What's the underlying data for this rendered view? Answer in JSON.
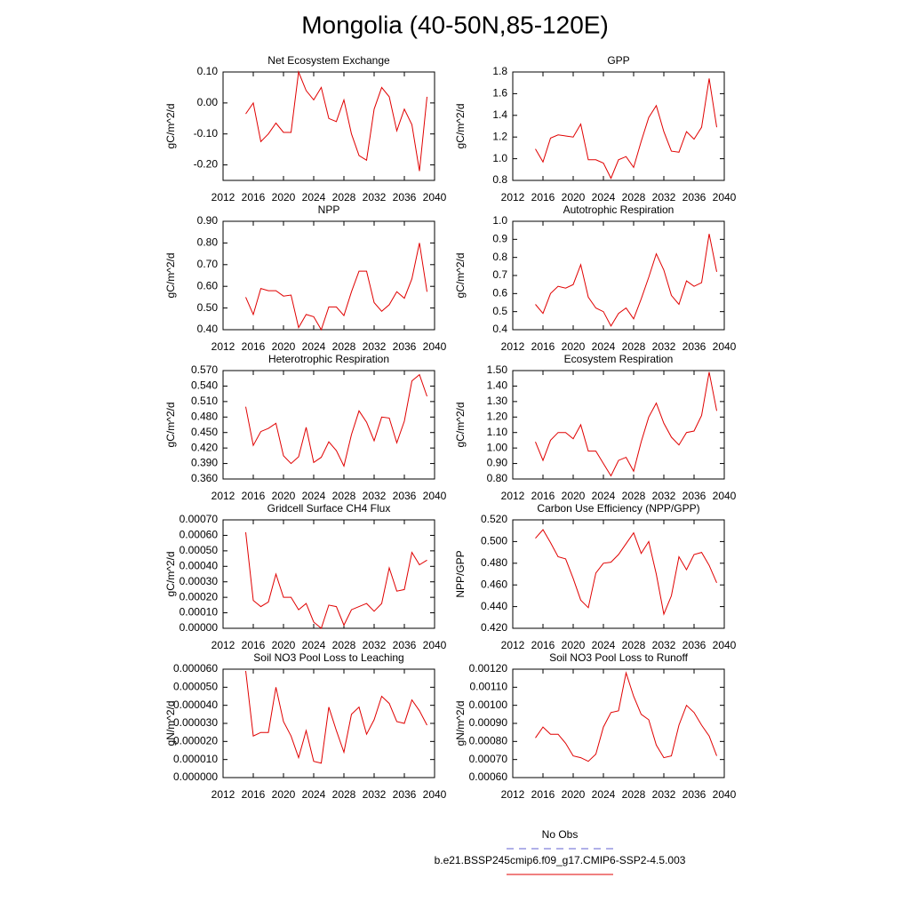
{
  "title": "Mongolia (40-50N,85-120E)",
  "legend": [
    {
      "name": "No Obs",
      "color": "#6060d0",
      "dash": true
    },
    {
      "name": "b.e21.BSSP245cmip6.f09_g17.CMIP6-SSP2-4.5.003",
      "color": "#e00000",
      "dash": false
    }
  ],
  "chart_data": [
    {
      "type": "line",
      "title": "Net Ecosystem Exchange",
      "y_label": "gC/m^2/d",
      "color": "#e00000",
      "x": [
        2015,
        2016,
        2017,
        2018,
        2019,
        2020,
        2021,
        2022,
        2023,
        2024,
        2025,
        2026,
        2027,
        2028,
        2029,
        2030,
        2031,
        2032,
        2033,
        2034,
        2035,
        2036,
        2037,
        2038,
        2039
      ],
      "values": [
        -0.035,
        0.0,
        -0.125,
        -0.1,
        -0.065,
        -0.095,
        -0.095,
        0.1,
        0.04,
        0.01,
        0.05,
        -0.05,
        -0.06,
        0.01,
        -0.1,
        -0.17,
        -0.185,
        -0.02,
        0.05,
        0.02,
        -0.09,
        -0.02,
        -0.07,
        -0.22,
        0.02
      ],
      "xlim": [
        2012,
        2040
      ],
      "xticks": [
        2012,
        2016,
        2020,
        2024,
        2028,
        2032,
        2036,
        2040
      ],
      "ylim": [
        -0.25,
        0.1
      ],
      "yticks": [
        {
          "value": 0.1,
          "label": "0.10"
        },
        {
          "value": 0,
          "label": "0.00"
        },
        {
          "value": -0.1,
          "label": "-0.10"
        },
        {
          "value": -0.2,
          "label": "-0.20"
        }
      ]
    },
    {
      "type": "line",
      "title": "GPP",
      "y_label": "gC/m^2/d",
      "color": "#e00000",
      "x": [
        2015,
        2016,
        2017,
        2018,
        2019,
        2020,
        2021,
        2022,
        2023,
        2024,
        2025,
        2026,
        2027,
        2028,
        2029,
        2030,
        2031,
        2032,
        2033,
        2034,
        2035,
        2036,
        2037,
        2038,
        2039
      ],
      "values": [
        1.09,
        0.97,
        1.19,
        1.22,
        1.21,
        1.2,
        1.32,
        0.99,
        0.99,
        0.96,
        0.82,
        0.99,
        1.02,
        0.92,
        1.16,
        1.38,
        1.49,
        1.25,
        1.07,
        1.06,
        1.25,
        1.18,
        1.29,
        1.74,
        1.29
      ],
      "xlim": [
        2012,
        2040
      ],
      "xticks": [
        2012,
        2016,
        2020,
        2024,
        2028,
        2032,
        2036,
        2040
      ],
      "ylim": [
        0.8,
        1.8
      ],
      "yticks": [
        0.8,
        {
          "value": 1,
          "label": "1.0"
        },
        1.2,
        1.4,
        1.6,
        1.8
      ]
    },
    {
      "type": "line",
      "title": "NPP",
      "y_label": "gC/m^2/d",
      "color": "#e00000",
      "x": [
        2015,
        2016,
        2017,
        2018,
        2019,
        2020,
        2021,
        2022,
        2023,
        2024,
        2025,
        2026,
        2027,
        2028,
        2029,
        2030,
        2031,
        2032,
        2033,
        2034,
        2035,
        2036,
        2037,
        2038,
        2039
      ],
      "values": [
        0.55,
        0.47,
        0.59,
        0.58,
        0.58,
        0.555,
        0.56,
        0.41,
        0.47,
        0.46,
        0.4,
        0.505,
        0.505,
        0.465,
        0.575,
        0.67,
        0.67,
        0.525,
        0.485,
        0.515,
        0.575,
        0.545,
        0.635,
        0.8,
        0.575
      ],
      "xlim": [
        2012,
        2040
      ],
      "xticks": [
        2012,
        2016,
        2020,
        2024,
        2028,
        2032,
        2036,
        2040
      ],
      "ylim": [
        0.4,
        0.9
      ],
      "yticks": [
        {
          "value": 0.4,
          "label": "0.40"
        },
        {
          "value": 0.5,
          "label": "0.50"
        },
        {
          "value": 0.6,
          "label": "0.60"
        },
        {
          "value": 0.7,
          "label": "0.70"
        },
        {
          "value": 0.8,
          "label": "0.80"
        },
        {
          "value": 0.9,
          "label": "0.90"
        }
      ]
    },
    {
      "type": "line",
      "title": "Autotrophic Respiration",
      "y_label": "gC/m^2/d",
      "color": "#e00000",
      "x": [
        2015,
        2016,
        2017,
        2018,
        2019,
        2020,
        2021,
        2022,
        2023,
        2024,
        2025,
        2026,
        2027,
        2028,
        2029,
        2030,
        2031,
        2032,
        2033,
        2034,
        2035,
        2036,
        2037,
        2038,
        2039
      ],
      "values": [
        0.54,
        0.49,
        0.6,
        0.64,
        0.63,
        0.65,
        0.76,
        0.58,
        0.52,
        0.5,
        0.42,
        0.49,
        0.52,
        0.46,
        0.57,
        0.69,
        0.82,
        0.73,
        0.59,
        0.54,
        0.67,
        0.64,
        0.66,
        0.93,
        0.72
      ],
      "xlim": [
        2012,
        2040
      ],
      "xticks": [
        2012,
        2016,
        2020,
        2024,
        2028,
        2032,
        2036,
        2040
      ],
      "ylim": [
        0.4,
        1.0
      ],
      "yticks": [
        0.4,
        0.5,
        0.6,
        0.7,
        0.8,
        0.9,
        {
          "value": 1,
          "label": "1.0"
        }
      ]
    },
    {
      "type": "line",
      "title": "Heterotrophic Respiration",
      "y_label": "gC/m^2/d",
      "color": "#e00000",
      "x": [
        2015,
        2016,
        2017,
        2018,
        2019,
        2020,
        2021,
        2022,
        2023,
        2024,
        2025,
        2026,
        2027,
        2028,
        2029,
        2030,
        2031,
        2032,
        2033,
        2034,
        2035,
        2036,
        2037,
        2038,
        2039
      ],
      "values": [
        0.5,
        0.425,
        0.452,
        0.458,
        0.468,
        0.405,
        0.39,
        0.403,
        0.46,
        0.392,
        0.402,
        0.432,
        0.415,
        0.385,
        0.446,
        0.492,
        0.47,
        0.434,
        0.48,
        0.478,
        0.43,
        0.472,
        0.55,
        0.562,
        0.52
      ],
      "xlim": [
        2012,
        2040
      ],
      "xticks": [
        2012,
        2016,
        2020,
        2024,
        2028,
        2032,
        2036,
        2040
      ],
      "ylim": [
        0.36,
        0.57
      ],
      "yticks": [
        {
          "value": 0.36,
          "label": "0.360"
        },
        {
          "value": 0.39,
          "label": "0.390"
        },
        {
          "value": 0.42,
          "label": "0.420"
        },
        {
          "value": 0.45,
          "label": "0.450"
        },
        {
          "value": 0.48,
          "label": "0.480"
        },
        {
          "value": 0.51,
          "label": "0.510"
        },
        {
          "value": 0.54,
          "label": "0.540"
        },
        {
          "value": 0.57,
          "label": "0.570"
        }
      ]
    },
    {
      "type": "line",
      "title": "Ecosystem Respiration",
      "y_label": "gC/m^2/d",
      "color": "#e00000",
      "x": [
        2015,
        2016,
        2017,
        2018,
        2019,
        2020,
        2021,
        2022,
        2023,
        2024,
        2025,
        2026,
        2027,
        2028,
        2029,
        2030,
        2031,
        2032,
        2033,
        2034,
        2035,
        2036,
        2037,
        2038,
        2039
      ],
      "values": [
        1.04,
        0.92,
        1.05,
        1.1,
        1.1,
        1.06,
        1.15,
        0.98,
        0.98,
        0.9,
        0.82,
        0.92,
        0.94,
        0.85,
        1.04,
        1.2,
        1.29,
        1.16,
        1.07,
        1.02,
        1.1,
        1.11,
        1.21,
        1.49,
        1.24
      ],
      "xlim": [
        2012,
        2040
      ],
      "xticks": [
        2012,
        2016,
        2020,
        2024,
        2028,
        2032,
        2036,
        2040
      ],
      "ylim": [
        0.8,
        1.5
      ],
      "yticks": [
        {
          "value": 0.8,
          "label": "0.80"
        },
        {
          "value": 0.9,
          "label": "0.90"
        },
        {
          "value": 1.0,
          "label": "1.00"
        },
        {
          "value": 1.1,
          "label": "1.10"
        },
        {
          "value": 1.2,
          "label": "1.20"
        },
        {
          "value": 1.3,
          "label": "1.30"
        },
        {
          "value": 1.4,
          "label": "1.40"
        },
        {
          "value": 1.5,
          "label": "1.50"
        }
      ]
    },
    {
      "type": "line",
      "title": "Gridcell Surface CH4 Flux",
      "y_label": "gC/m^2/d",
      "color": "#e00000",
      "x": [
        2015,
        2016,
        2017,
        2018,
        2019,
        2020,
        2021,
        2022,
        2023,
        2024,
        2025,
        2026,
        2027,
        2028,
        2029,
        2030,
        2031,
        2032,
        2033,
        2034,
        2035,
        2036,
        2037,
        2038,
        2039
      ],
      "values": [
        0.00062,
        0.00018,
        0.00014,
        0.00017,
        0.00035,
        0.0002,
        0.0002,
        0.00012,
        0.00016,
        4e-05,
        0.0,
        0.00015,
        0.00014,
        2e-05,
        0.00012,
        0.00014,
        0.00016,
        0.00011,
        0.00016,
        0.00039,
        0.00024,
        0.00025,
        0.00049,
        0.00041,
        0.00044
      ],
      "xlim": [
        2012,
        2040
      ],
      "xticks": [
        2012,
        2016,
        2020,
        2024,
        2028,
        2032,
        2036,
        2040
      ],
      "ylim": [
        0,
        0.0007
      ],
      "yticks": [
        {
          "value": 0,
          "label": "0.00000"
        },
        {
          "value": 0.0001,
          "label": "0.00010"
        },
        {
          "value": 0.0002,
          "label": "0.00020"
        },
        {
          "value": 0.0003,
          "label": "0.00030"
        },
        {
          "value": 0.0004,
          "label": "0.00040"
        },
        {
          "value": 0.0005,
          "label": "0.00050"
        },
        {
          "value": 0.0006,
          "label": "0.00060"
        },
        {
          "value": 0.0007,
          "label": "0.00070"
        }
      ]
    },
    {
      "type": "line",
      "title": "Carbon Use Efficiency (NPP/GPP)",
      "y_label": "NPP/GPP",
      "color": "#e00000",
      "x": [
        2015,
        2016,
        2017,
        2018,
        2019,
        2020,
        2021,
        2022,
        2023,
        2024,
        2025,
        2026,
        2027,
        2028,
        2029,
        2030,
        2031,
        2032,
        2033,
        2034,
        2035,
        2036,
        2037,
        2038,
        2039
      ],
      "values": [
        0.503,
        0.511,
        0.499,
        0.486,
        0.484,
        0.466,
        0.446,
        0.439,
        0.471,
        0.48,
        0.481,
        0.488,
        0.498,
        0.508,
        0.489,
        0.5,
        0.47,
        0.433,
        0.45,
        0.486,
        0.474,
        0.488,
        0.49,
        0.478,
        0.462
      ],
      "xlim": [
        2012,
        2040
      ],
      "xticks": [
        2012,
        2016,
        2020,
        2024,
        2028,
        2032,
        2036,
        2040
      ],
      "ylim": [
        0.42,
        0.52
      ],
      "yticks": [
        {
          "value": 0.42,
          "label": "0.420"
        },
        {
          "value": 0.44,
          "label": "0.440"
        },
        {
          "value": 0.46,
          "label": "0.460"
        },
        {
          "value": 0.48,
          "label": "0.480"
        },
        {
          "value": 0.5,
          "label": "0.500"
        },
        {
          "value": 0.52,
          "label": "0.520"
        }
      ]
    },
    {
      "type": "line",
      "title": "Soil NO3 Pool Loss to Leaching",
      "y_label": "gN/m^2/d",
      "color": "#e00000",
      "x": [
        2015,
        2016,
        2017,
        2018,
        2019,
        2020,
        2021,
        2022,
        2023,
        2024,
        2025,
        2026,
        2027,
        2028,
        2029,
        2030,
        2031,
        2032,
        2033,
        2034,
        2035,
        2036,
        2037,
        2038,
        2039
      ],
      "values": [
        5.9e-05,
        2.3e-05,
        2.5e-05,
        2.5e-05,
        5e-05,
        3.1e-05,
        2.3e-05,
        1.1e-05,
        2.6e-05,
        9e-06,
        8e-06,
        3.9e-05,
        2.6e-05,
        1.4e-05,
        3.5e-05,
        3.9e-05,
        2.4e-05,
        3.2e-05,
        4.5e-05,
        4.1e-05,
        3.1e-05,
        3e-05,
        4.3e-05,
        3.7e-05,
        2.9e-05
      ],
      "xlim": [
        2012,
        2040
      ],
      "xticks": [
        2012,
        2016,
        2020,
        2024,
        2028,
        2032,
        2036,
        2040
      ],
      "ylim": [
        0,
        6e-05
      ],
      "yticks": [
        {
          "value": 0,
          "label": "0.000000"
        },
        {
          "value": 1e-05,
          "label": "0.000010"
        },
        {
          "value": 2e-05,
          "label": "0.000020"
        },
        {
          "value": 3e-05,
          "label": "0.000030"
        },
        {
          "value": 4e-05,
          "label": "0.000040"
        },
        {
          "value": 5e-05,
          "label": "0.000050"
        },
        {
          "value": 6e-05,
          "label": "0.000060"
        }
      ]
    },
    {
      "type": "line",
      "title": "Soil NO3 Pool Loss to Runoff",
      "y_label": "gN/m^2/d",
      "color": "#e00000",
      "x": [
        2015,
        2016,
        2017,
        2018,
        2019,
        2020,
        2021,
        2022,
        2023,
        2024,
        2025,
        2026,
        2027,
        2028,
        2029,
        2030,
        2031,
        2032,
        2033,
        2034,
        2035,
        2036,
        2037,
        2038,
        2039
      ],
      "values": [
        0.00082,
        0.00088,
        0.00084,
        0.00084,
        0.00079,
        0.00072,
        0.00071,
        0.00069,
        0.00073,
        0.00088,
        0.00096,
        0.00097,
        0.00118,
        0.00105,
        0.00095,
        0.00092,
        0.00078,
        0.00071,
        0.00072,
        0.00089,
        0.001,
        0.00096,
        0.00089,
        0.00083,
        0.00072
      ],
      "xlim": [
        2012,
        2040
      ],
      "xticks": [
        2012,
        2016,
        2020,
        2024,
        2028,
        2032,
        2036,
        2040
      ],
      "ylim": [
        0.0006,
        0.0012
      ],
      "yticks": [
        {
          "value": 0.0006,
          "label": "0.00060"
        },
        {
          "value": 0.0007,
          "label": "0.00070"
        },
        {
          "value": 0.0008,
          "label": "0.00080"
        },
        {
          "value": 0.0009,
          "label": "0.00090"
        },
        {
          "value": 0.001,
          "label": "0.00100"
        },
        {
          "value": 0.0011,
          "label": "0.00110"
        },
        {
          "value": 0.0012,
          "label": "0.00120"
        }
      ]
    }
  ]
}
